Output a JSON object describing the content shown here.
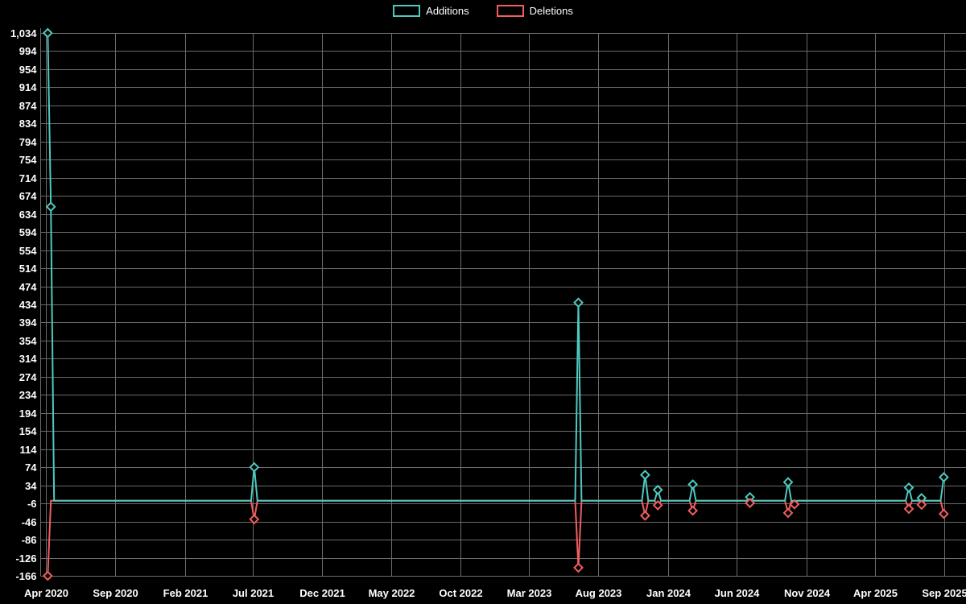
{
  "chart_data": {
    "type": "line",
    "title": "",
    "legend_position": "top-center",
    "grid": true,
    "background_color": "#000000",
    "grid_color": "#6b6b6b",
    "text_color": "#ffffff",
    "series": [
      {
        "name": "Additions",
        "color": "#4ec9c0"
      },
      {
        "name": "Deletions",
        "color": "#f25e5e"
      }
    ],
    "x_axis": {
      "tick_labels": [
        "Apr 2020",
        "Sep 2020",
        "Feb 2021",
        "Jul 2021",
        "Dec 2021",
        "May 2022",
        "Oct 2022",
        "Mar 2023",
        "Aug 2023",
        "Jan 2024",
        "Jun 2024",
        "Nov 2024",
        "Apr 2025",
        "Sep 2025"
      ]
    },
    "y_axis": {
      "min": -166,
      "max": 1034,
      "tick_step": 40,
      "tick_labels": [
        "1,034",
        "994",
        "954",
        "914",
        "874",
        "834",
        "794",
        "754",
        "714",
        "674",
        "634",
        "594",
        "554",
        "514",
        "474",
        "434",
        "394",
        "354",
        "314",
        "274",
        "234",
        "194",
        "154",
        "114",
        "74",
        "34",
        "-6",
        "-46",
        "-86",
        "-126",
        "-166"
      ]
    },
    "baseline_value": 0,
    "points_note": "weekly data; all weeks not listed are additions 0 / deletions 0",
    "points": [
      {
        "date": "2020-04-05",
        "additions": 1034,
        "deletions": -166
      },
      {
        "date": "2020-04-12",
        "additions": 650,
        "deletions": 0
      },
      {
        "date": "2021-07-04",
        "additions": 74,
        "deletions": -41
      },
      {
        "date": "2023-06-18",
        "additions": 438,
        "deletions": -148
      },
      {
        "date": "2023-11-12",
        "additions": 57,
        "deletions": -33
      },
      {
        "date": "2023-12-10",
        "additions": 24,
        "deletions": -10
      },
      {
        "date": "2024-02-25",
        "additions": 36,
        "deletions": -22
      },
      {
        "date": "2024-06-30",
        "additions": 8,
        "deletions": -5
      },
      {
        "date": "2024-09-22",
        "additions": 41,
        "deletions": -27
      },
      {
        "date": "2024-10-06",
        "additions": 0,
        "deletions": -8
      },
      {
        "date": "2025-06-15",
        "additions": 29,
        "deletions": -18
      },
      {
        "date": "2025-07-13",
        "additions": 6,
        "deletions": -9
      },
      {
        "date": "2025-08-31",
        "additions": 52,
        "deletions": -29
      }
    ]
  }
}
